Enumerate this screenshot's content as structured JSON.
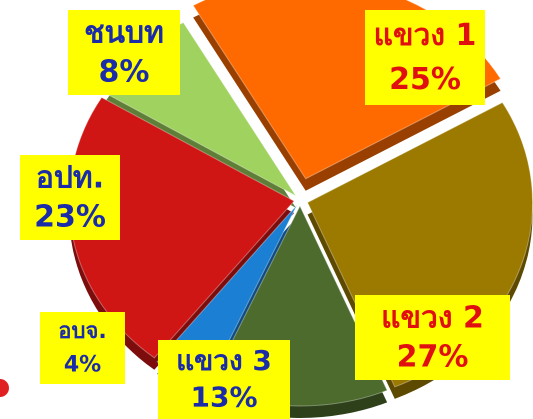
{
  "chart_data": {
    "type": "pie",
    "categories": [
      "แขวง 1",
      "แขวง 2",
      "แขวง 3",
      "อบจ.",
      "อปท.",
      "ชนบท"
    ],
    "values": [
      25,
      27,
      13,
      4,
      23,
      8
    ],
    "value_labels": [
      "25%",
      "27%",
      "13%",
      "4%",
      "23%",
      "8%"
    ],
    "colors": [
      "#ff6a00",
      "#9c7a00",
      "#4d6b2c",
      "#1b7fd4",
      "#d01515",
      "#9fd25e"
    ]
  }
}
